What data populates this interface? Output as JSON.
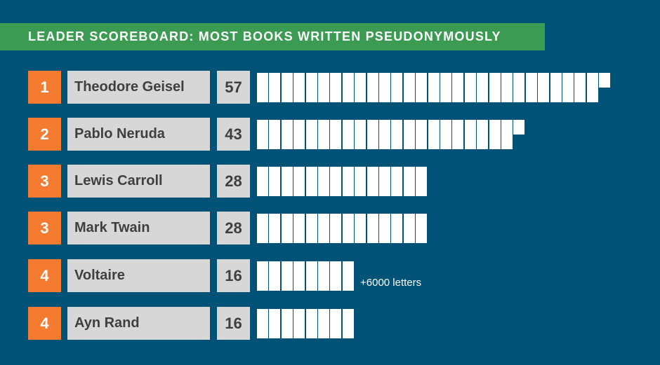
{
  "title": "LEADER SCOREBOARD: MOST BOOKS WRITTEN PSEUDONYMOUSLY",
  "colors": {
    "background": "#005276",
    "title_bar": "#3b9b52",
    "rank_box": "#f47b30",
    "label_box": "#d7d7d7",
    "book_tally": "#ffffff"
  },
  "chart_data": {
    "type": "bar",
    "title": "LEADER SCOREBOARD: MOST BOOKS WRITTEN PSEUDONYMOUSLY",
    "categories": [
      "Theodore Geisel",
      "Pablo Neruda",
      "Lewis Carroll",
      "Mark Twain",
      "Voltaire",
      "Ayn Rand"
    ],
    "ranks": [
      "1",
      "2",
      "3",
      "3",
      "4",
      "4"
    ],
    "values": [
      57,
      43,
      28,
      28,
      16,
      16
    ],
    "annotations": [
      {
        "category": "Voltaire",
        "text": "+6000 letters"
      }
    ],
    "xlabel": "",
    "ylabel": "",
    "grid": false,
    "legend": "none"
  }
}
